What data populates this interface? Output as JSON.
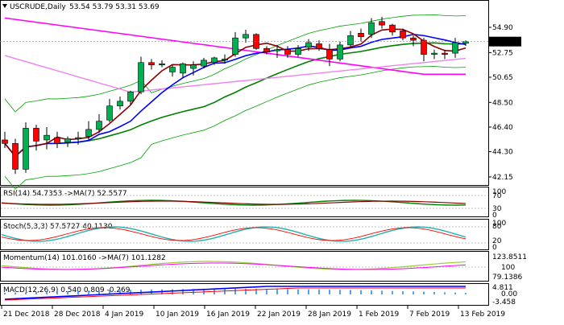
{
  "chart_header": {
    "symbol_tf": "USCRUDE,Daily",
    "ohlc": "53.54 53.79 53.31 53.69"
  },
  "current_price_label": "53.69",
  "colors": {
    "bull_candle": "#00b050",
    "bear_candle": "#ff0000",
    "candle_outline": "#000000",
    "ma_fast": "#8b0000",
    "ma_mid": "#0000ff",
    "ma_slow": "#008000",
    "ma_long": "#ff00ff",
    "bollinger": "#00a000",
    "pink_line": "#ee82ee",
    "rsi_line": "#008000",
    "rsi_ma": "#8b0000",
    "stoch_main": "#20b2aa",
    "stoch_signal": "#ff0000",
    "momentum_main": "#9acd32",
    "momentum_ma": "#ff00ff",
    "macd_main": "#0000ff",
    "macd_signal": "#ff0000",
    "grid": "#c0c0c0",
    "price_tag_bg": "#000000",
    "price_tag_fg": "#ffffff"
  },
  "price_axis": {
    "ticks": [
      "54.90",
      "52.75",
      "50.65",
      "48.50",
      "46.40",
      "44.30",
      "42.15"
    ],
    "tick_values": [
      54.9,
      52.75,
      50.65,
      48.5,
      46.4,
      44.3,
      42.15
    ],
    "current_value": 53.69
  },
  "time_axis": {
    "labels": [
      "21 Dec 2018",
      "28 Dec 2018",
      "4 Jan 2019",
      "10 Jan 2019",
      "16 Jan 2019",
      "22 Jan 2019",
      "28 Jan 2019",
      "1 Feb 2019",
      "7 Feb 2019",
      "13 Feb 2019"
    ]
  },
  "indicators": {
    "rsi": {
      "title": "RSI(14) 54.7353 ->MA(7) 52.5577",
      "levels": [
        "100",
        "70",
        "30",
        "0"
      ]
    },
    "stoch": {
      "title": "Stoch(5,3,3) 57.5727 40.1130",
      "levels": [
        "100",
        "80",
        "20",
        "0"
      ]
    },
    "momentum": {
      "title": "Momentum(14) 101.0160 ->MA(7) 101.1282",
      "levels": [
        "123.8511",
        "100",
        "79.1386"
      ]
    },
    "macd": {
      "title": "MACD(12,26,9) 0.540 0.809 -0.269",
      "levels": [
        "4.811",
        "0.00",
        "-3.458"
      ]
    }
  },
  "chart_data": {
    "type": "candlestick",
    "candles": [
      {
        "o": 45.3,
        "h": 46.0,
        "l": 44.6,
        "c": 45.0
      },
      {
        "o": 45.0,
        "h": 45.4,
        "l": 42.4,
        "c": 42.8
      },
      {
        "o": 42.8,
        "h": 46.8,
        "l": 42.5,
        "c": 46.3
      },
      {
        "o": 46.3,
        "h": 46.6,
        "l": 44.4,
        "c": 45.2
      },
      {
        "o": 45.3,
        "h": 46.4,
        "l": 44.5,
        "c": 45.7
      },
      {
        "o": 45.5,
        "h": 46.0,
        "l": 44.6,
        "c": 45.0
      },
      {
        "o": 45.1,
        "h": 45.6,
        "l": 44.7,
        "c": 45.4
      },
      {
        "o": 45.4,
        "h": 46.0,
        "l": 44.9,
        "c": 45.5
      },
      {
        "o": 45.6,
        "h": 46.9,
        "l": 45.3,
        "c": 46.2
      },
      {
        "o": 46.2,
        "h": 47.5,
        "l": 45.9,
        "c": 46.9
      },
      {
        "o": 47.0,
        "h": 48.8,
        "l": 46.8,
        "c": 48.2
      },
      {
        "o": 48.2,
        "h": 49.0,
        "l": 47.9,
        "c": 48.6
      },
      {
        "o": 48.6,
        "h": 49.5,
        "l": 48.3,
        "c": 49.4
      },
      {
        "o": 49.4,
        "h": 52.4,
        "l": 49.2,
        "c": 51.9
      },
      {
        "o": 51.9,
        "h": 52.2,
        "l": 51.3,
        "c": 51.7
      },
      {
        "o": 51.7,
        "h": 52.1,
        "l": 51.5,
        "c": 51.8
      },
      {
        "o": 51.1,
        "h": 51.7,
        "l": 50.7,
        "c": 51.5
      },
      {
        "o": 51.0,
        "h": 51.9,
        "l": 50.6,
        "c": 51.8
      },
      {
        "o": 51.4,
        "h": 52.0,
        "l": 50.8,
        "c": 51.7
      },
      {
        "o": 51.6,
        "h": 52.3,
        "l": 51.4,
        "c": 52.1
      },
      {
        "o": 51.9,
        "h": 52.4,
        "l": 51.7,
        "c": 52.3
      },
      {
        "o": 52.1,
        "h": 52.6,
        "l": 51.8,
        "c": 52.2
      },
      {
        "o": 52.6,
        "h": 54.5,
        "l": 52.4,
        "c": 54.0
      },
      {
        "o": 54.0,
        "h": 54.7,
        "l": 53.6,
        "c": 54.3
      },
      {
        "o": 54.3,
        "h": 54.4,
        "l": 53.0,
        "c": 53.1
      },
      {
        "o": 53.1,
        "h": 53.3,
        "l": 52.6,
        "c": 52.8
      },
      {
        "o": 52.9,
        "h": 53.4,
        "l": 52.3,
        "c": 53.0
      },
      {
        "o": 53.0,
        "h": 53.3,
        "l": 52.3,
        "c": 52.6
      },
      {
        "o": 52.6,
        "h": 53.4,
        "l": 52.4,
        "c": 53.1
      },
      {
        "o": 53.2,
        "h": 53.9,
        "l": 52.9,
        "c": 53.6
      },
      {
        "o": 53.5,
        "h": 53.8,
        "l": 52.9,
        "c": 53.1
      },
      {
        "o": 53.0,
        "h": 53.5,
        "l": 51.6,
        "c": 52.2
      },
      {
        "o": 52.2,
        "h": 53.7,
        "l": 52.0,
        "c": 53.4
      },
      {
        "o": 53.4,
        "h": 54.6,
        "l": 53.2,
        "c": 54.2
      },
      {
        "o": 54.4,
        "h": 54.8,
        "l": 53.7,
        "c": 54.1
      },
      {
        "o": 54.3,
        "h": 55.7,
        "l": 54.0,
        "c": 55.3
      },
      {
        "o": 55.4,
        "h": 55.8,
        "l": 54.8,
        "c": 55.1
      },
      {
        "o": 55.1,
        "h": 55.2,
        "l": 54.2,
        "c": 54.5
      },
      {
        "o": 54.6,
        "h": 54.8,
        "l": 53.8,
        "c": 54.0
      },
      {
        "o": 54.0,
        "h": 54.2,
        "l": 53.3,
        "c": 53.8
      },
      {
        "o": 53.8,
        "h": 54.0,
        "l": 52.0,
        "c": 52.6
      },
      {
        "o": 52.6,
        "h": 53.0,
        "l": 52.2,
        "c": 52.7
      },
      {
        "o": 52.7,
        "h": 53.0,
        "l": 52.2,
        "c": 52.6
      },
      {
        "o": 52.7,
        "h": 54.0,
        "l": 52.3,
        "c": 53.6
      },
      {
        "o": 53.54,
        "h": 53.79,
        "l": 53.31,
        "c": 53.69
      }
    ]
  }
}
